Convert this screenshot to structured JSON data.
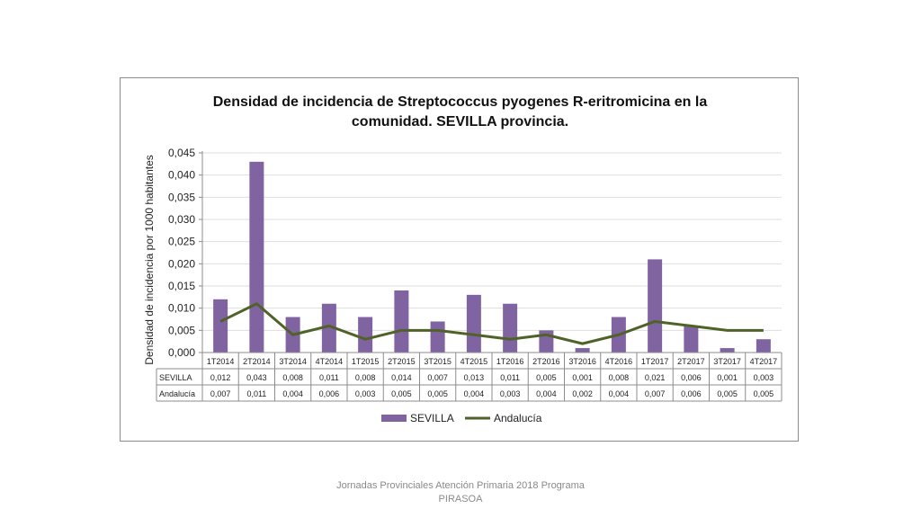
{
  "slide": {
    "footer": "Jornadas Provinciales Atención Primaria 2018 Programa PIRASOA"
  },
  "chart_data": {
    "type": "bar",
    "title_line1": "Densidad de incidencia de Streptococcus pyogenes R-eritromicina en la",
    "title_line2": "comunidad. SEVILLA provincia.",
    "title_parts": {
      "a": "Densidad\u0000de\u0000incidencia\u0000de\u0000",
      "b": "Streptococcus\u0000pyogenes",
      "c": "\u0000R-eritromicina\u0000en\u0000la\u0000",
      "d": "comunidad.\u0000SEVILLA\u0000provincia\u0000"
    },
    "ylabel": "Densidad de incidencia por 1000 habitantes",
    "ylim": [
      0,
      0.045
    ],
    "yticks": [
      "0,000",
      "0,005",
      "0,010",
      "0,015",
      "0,020",
      "0,025",
      "0,030",
      "0,035",
      "0,040",
      "0,045"
    ],
    "categories": [
      "1T2014",
      "2T2014",
      "3T2014",
      "4T2014",
      "1T2015",
      "2T2015",
      "3T2015",
      "4T2015",
      "1T2016",
      "2T2016",
      "3T2016",
      "4T2016",
      "1T2017",
      "2T2017",
      "3T2017",
      "4T2017"
    ],
    "series": [
      {
        "name": "SEVILLA",
        "kind": "bar",
        "color": "#8064a2",
        "values": [
          0.012,
          0.043,
          0.008,
          0.011,
          0.008,
          0.014,
          0.007,
          0.013,
          0.011,
          0.005,
          0.001,
          0.008,
          0.021,
          0.006,
          0.001,
          0.003
        ],
        "labels": [
          "0,012",
          "0,043",
          "0,008",
          "0,011",
          "0,008",
          "0,014",
          "0,007",
          "0,013",
          "0,011",
          "0,005",
          "0,001",
          "0,008",
          "0,021",
          "0,006",
          "0,001",
          "0,003"
        ]
      },
      {
        "name": "Andalucía",
        "kind": "line",
        "color": "#4f6228",
        "values": [
          0.007,
          0.011,
          0.004,
          0.006,
          0.003,
          0.005,
          0.005,
          0.004,
          0.003,
          0.004,
          0.002,
          0.004,
          0.007,
          0.006,
          0.005,
          0.005
        ],
        "labels": [
          "0,007",
          "0,011",
          "0,004",
          "0,006",
          "0,003",
          "0,005",
          "0,005",
          "0,004",
          "0,003",
          "0,004",
          "0,002",
          "0,004",
          "0,007",
          "0,006",
          "0,005",
          "0,005"
        ]
      }
    ],
    "grid": true,
    "legend": "bottom",
    "data_table": true
  }
}
